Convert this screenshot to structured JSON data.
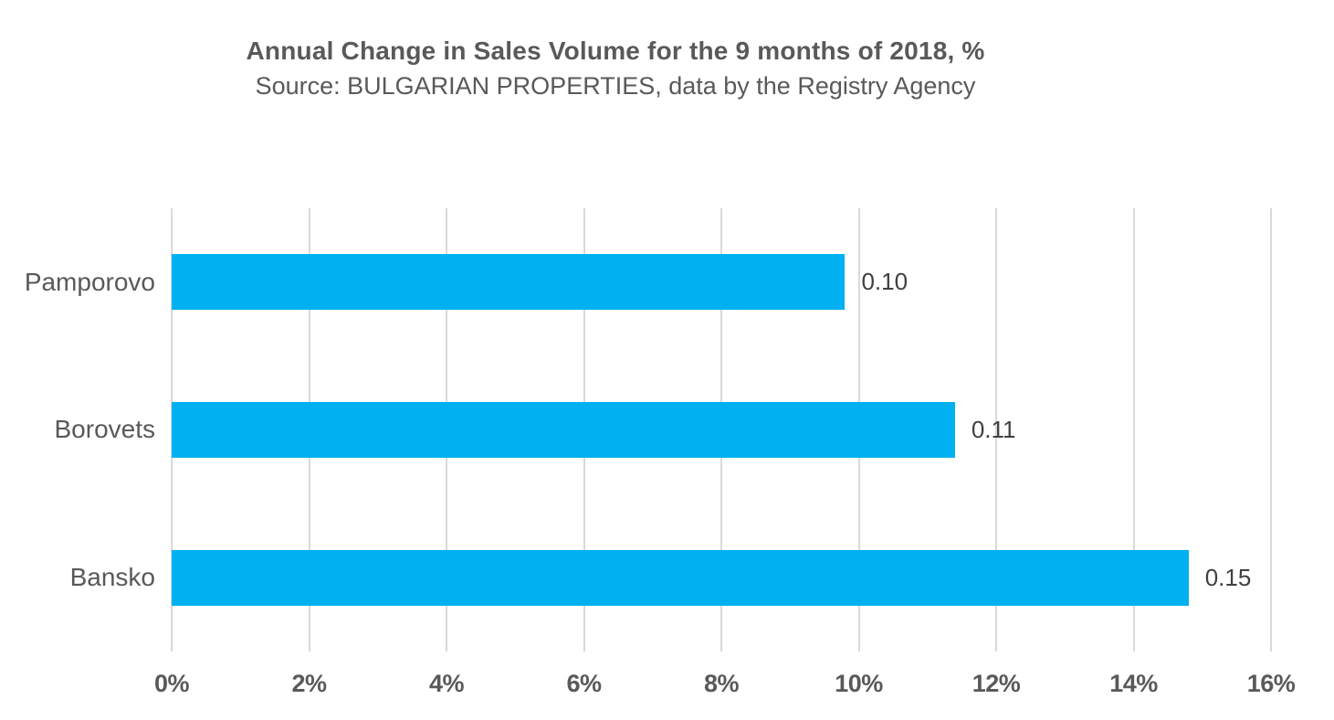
{
  "header": {
    "title": "Annual Change in Sales Volume for the 9 months of 2018, %",
    "subtitle": "Source: BULGARIAN PROPERTIES, data by the Registry Agency"
  },
  "colors": {
    "bar": "#00b0f0",
    "gridline": "#d9d9d9",
    "title_text": "#595959",
    "axis_text": "#595959",
    "data_label_text": "#404040",
    "background": "#ffffff"
  },
  "chart_data": {
    "type": "bar",
    "orientation": "horizontal",
    "title": "Annual Change in Sales Volume for the 9 months of 2018, %",
    "subtitle": "Source: BULGARIAN PROPERTIES, data by the Registry Agency",
    "categories": [
      "Pamporovo",
      "Borovets",
      "Bansko"
    ],
    "values_percent": [
      9.8,
      11.4,
      14.8
    ],
    "data_labels": [
      "0.10",
      "0.11",
      "0.15"
    ],
    "xlabel": "",
    "ylabel": "",
    "xlim": [
      0,
      16
    ],
    "x_tick_step": 2,
    "x_tick_labels": [
      "0%",
      "2%",
      "4%",
      "6%",
      "8%",
      "10%",
      "12%",
      "14%",
      "16%"
    ],
    "grid": "vertical-only",
    "legend": "none",
    "data_label_position": "outside-end"
  }
}
